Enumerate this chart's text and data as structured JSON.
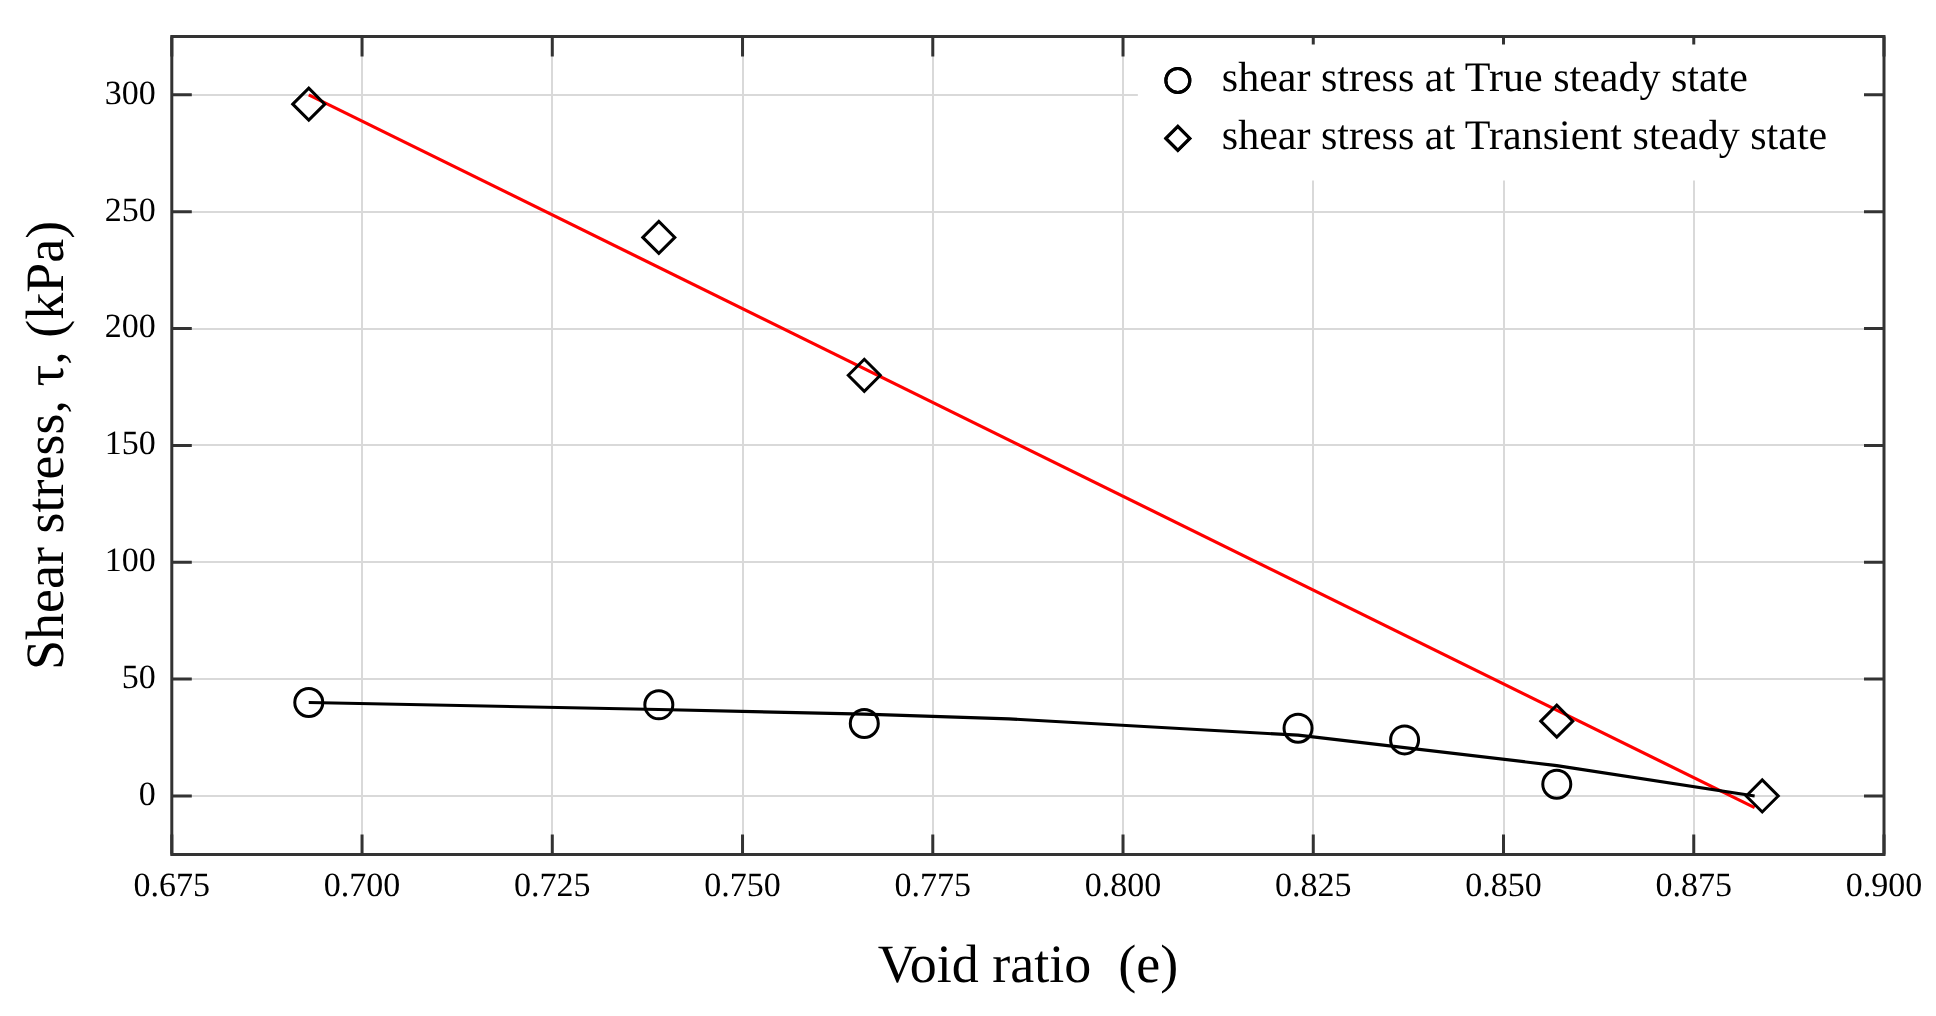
{
  "chart_data": {
    "type": "scatter",
    "xlabel": "Void ratio  (e)",
    "ylabel": "Shear stress, τ, (kPa)",
    "xlim": [
      0.675,
      0.9
    ],
    "xticks": [
      {
        "value": 0.675,
        "label": "0.675"
      },
      {
        "value": 0.7,
        "label": "0.700"
      },
      {
        "value": 0.725,
        "label": "0.725"
      },
      {
        "value": 0.75,
        "label": "0.750"
      },
      {
        "value": 0.775,
        "label": "0.775"
      },
      {
        "value": 0.8,
        "label": "0.800"
      },
      {
        "value": 0.825,
        "label": "0.825"
      },
      {
        "value": 0.85,
        "label": "0.850"
      },
      {
        "value": 0.875,
        "label": "0.875"
      },
      {
        "value": 0.9,
        "label": "0.900"
      }
    ],
    "ylim": [
      -25,
      325
    ],
    "yticks": [
      0,
      50,
      100,
      150,
      200,
      250,
      300
    ],
    "grid": true,
    "legend": "top right",
    "series": [
      {
        "name": "shear stress at True steady state",
        "type": "scatter",
        "marker": "circle",
        "color": "#000000",
        "x": [
          0.693,
          0.739,
          0.766,
          0.823,
          0.837,
          0.857
        ],
        "values": [
          40,
          39,
          31,
          29,
          24,
          5
        ]
      },
      {
        "name": "shear stress at Transient steady state",
        "type": "scatter",
        "marker": "diamond",
        "color": "#000000",
        "x": [
          0.693,
          0.739,
          0.766,
          0.857,
          0.884
        ],
        "values": [
          296,
          239,
          180,
          32,
          0
        ]
      },
      {
        "type": "line",
        "marker": "none",
        "color": "#000000",
        "x": [
          0.693,
          0.739,
          0.766,
          0.785,
          0.823,
          0.857,
          0.883
        ],
        "values": [
          40,
          37,
          35,
          33,
          26,
          13,
          0
        ]
      },
      {
        "type": "line",
        "marker": "none",
        "color": "#ff0000",
        "x": [
          0.693,
          0.883
        ],
        "values": [
          300,
          -5
        ]
      }
    ]
  }
}
